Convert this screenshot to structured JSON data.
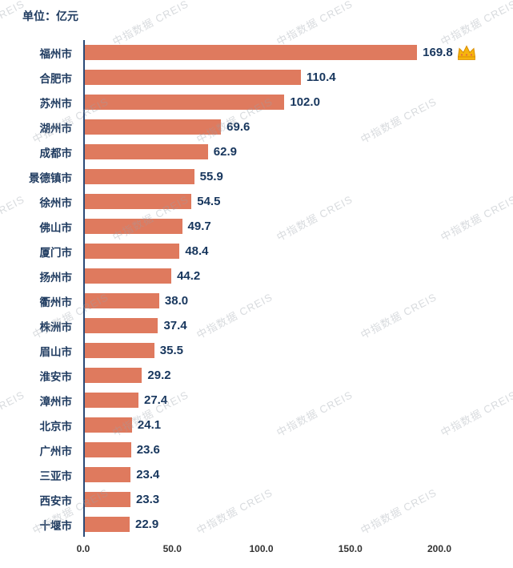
{
  "unit_label": "单位：亿元",
  "watermark_text": "中指数据 CREIS",
  "colors": {
    "bar": "#df7a5e",
    "category_label": "#1e3a5f",
    "value_label": "#17365d",
    "axis_line": "#2b4a77",
    "crown": "#f6b40e"
  },
  "chart_data": {
    "type": "bar",
    "orientation": "horizontal",
    "title": "",
    "unit": "亿元",
    "categories": [
      "福州市",
      "合肥市",
      "苏州市",
      "湖州市",
      "成都市",
      "景德镇市",
      "徐州市",
      "佛山市",
      "厦门市",
      "扬州市",
      "衢州市",
      "株洲市",
      "眉山市",
      "淮安市",
      "漳州市",
      "北京市",
      "广州市",
      "三亚市",
      "西安市",
      "十堰市"
    ],
    "values": [
      169.8,
      110.4,
      102.0,
      69.6,
      62.9,
      55.9,
      54.5,
      49.7,
      48.4,
      44.2,
      38.0,
      37.4,
      35.5,
      29.2,
      27.4,
      24.1,
      23.6,
      23.4,
      23.3,
      22.9
    ],
    "xlim": [
      0,
      200
    ],
    "xtick_labels": [
      "0.0",
      "50.0",
      "100.0",
      "150.0",
      "200.0"
    ],
    "grid": false,
    "legend": null,
    "highlight": {
      "category": "福州市",
      "icon": "crown-icon"
    }
  }
}
